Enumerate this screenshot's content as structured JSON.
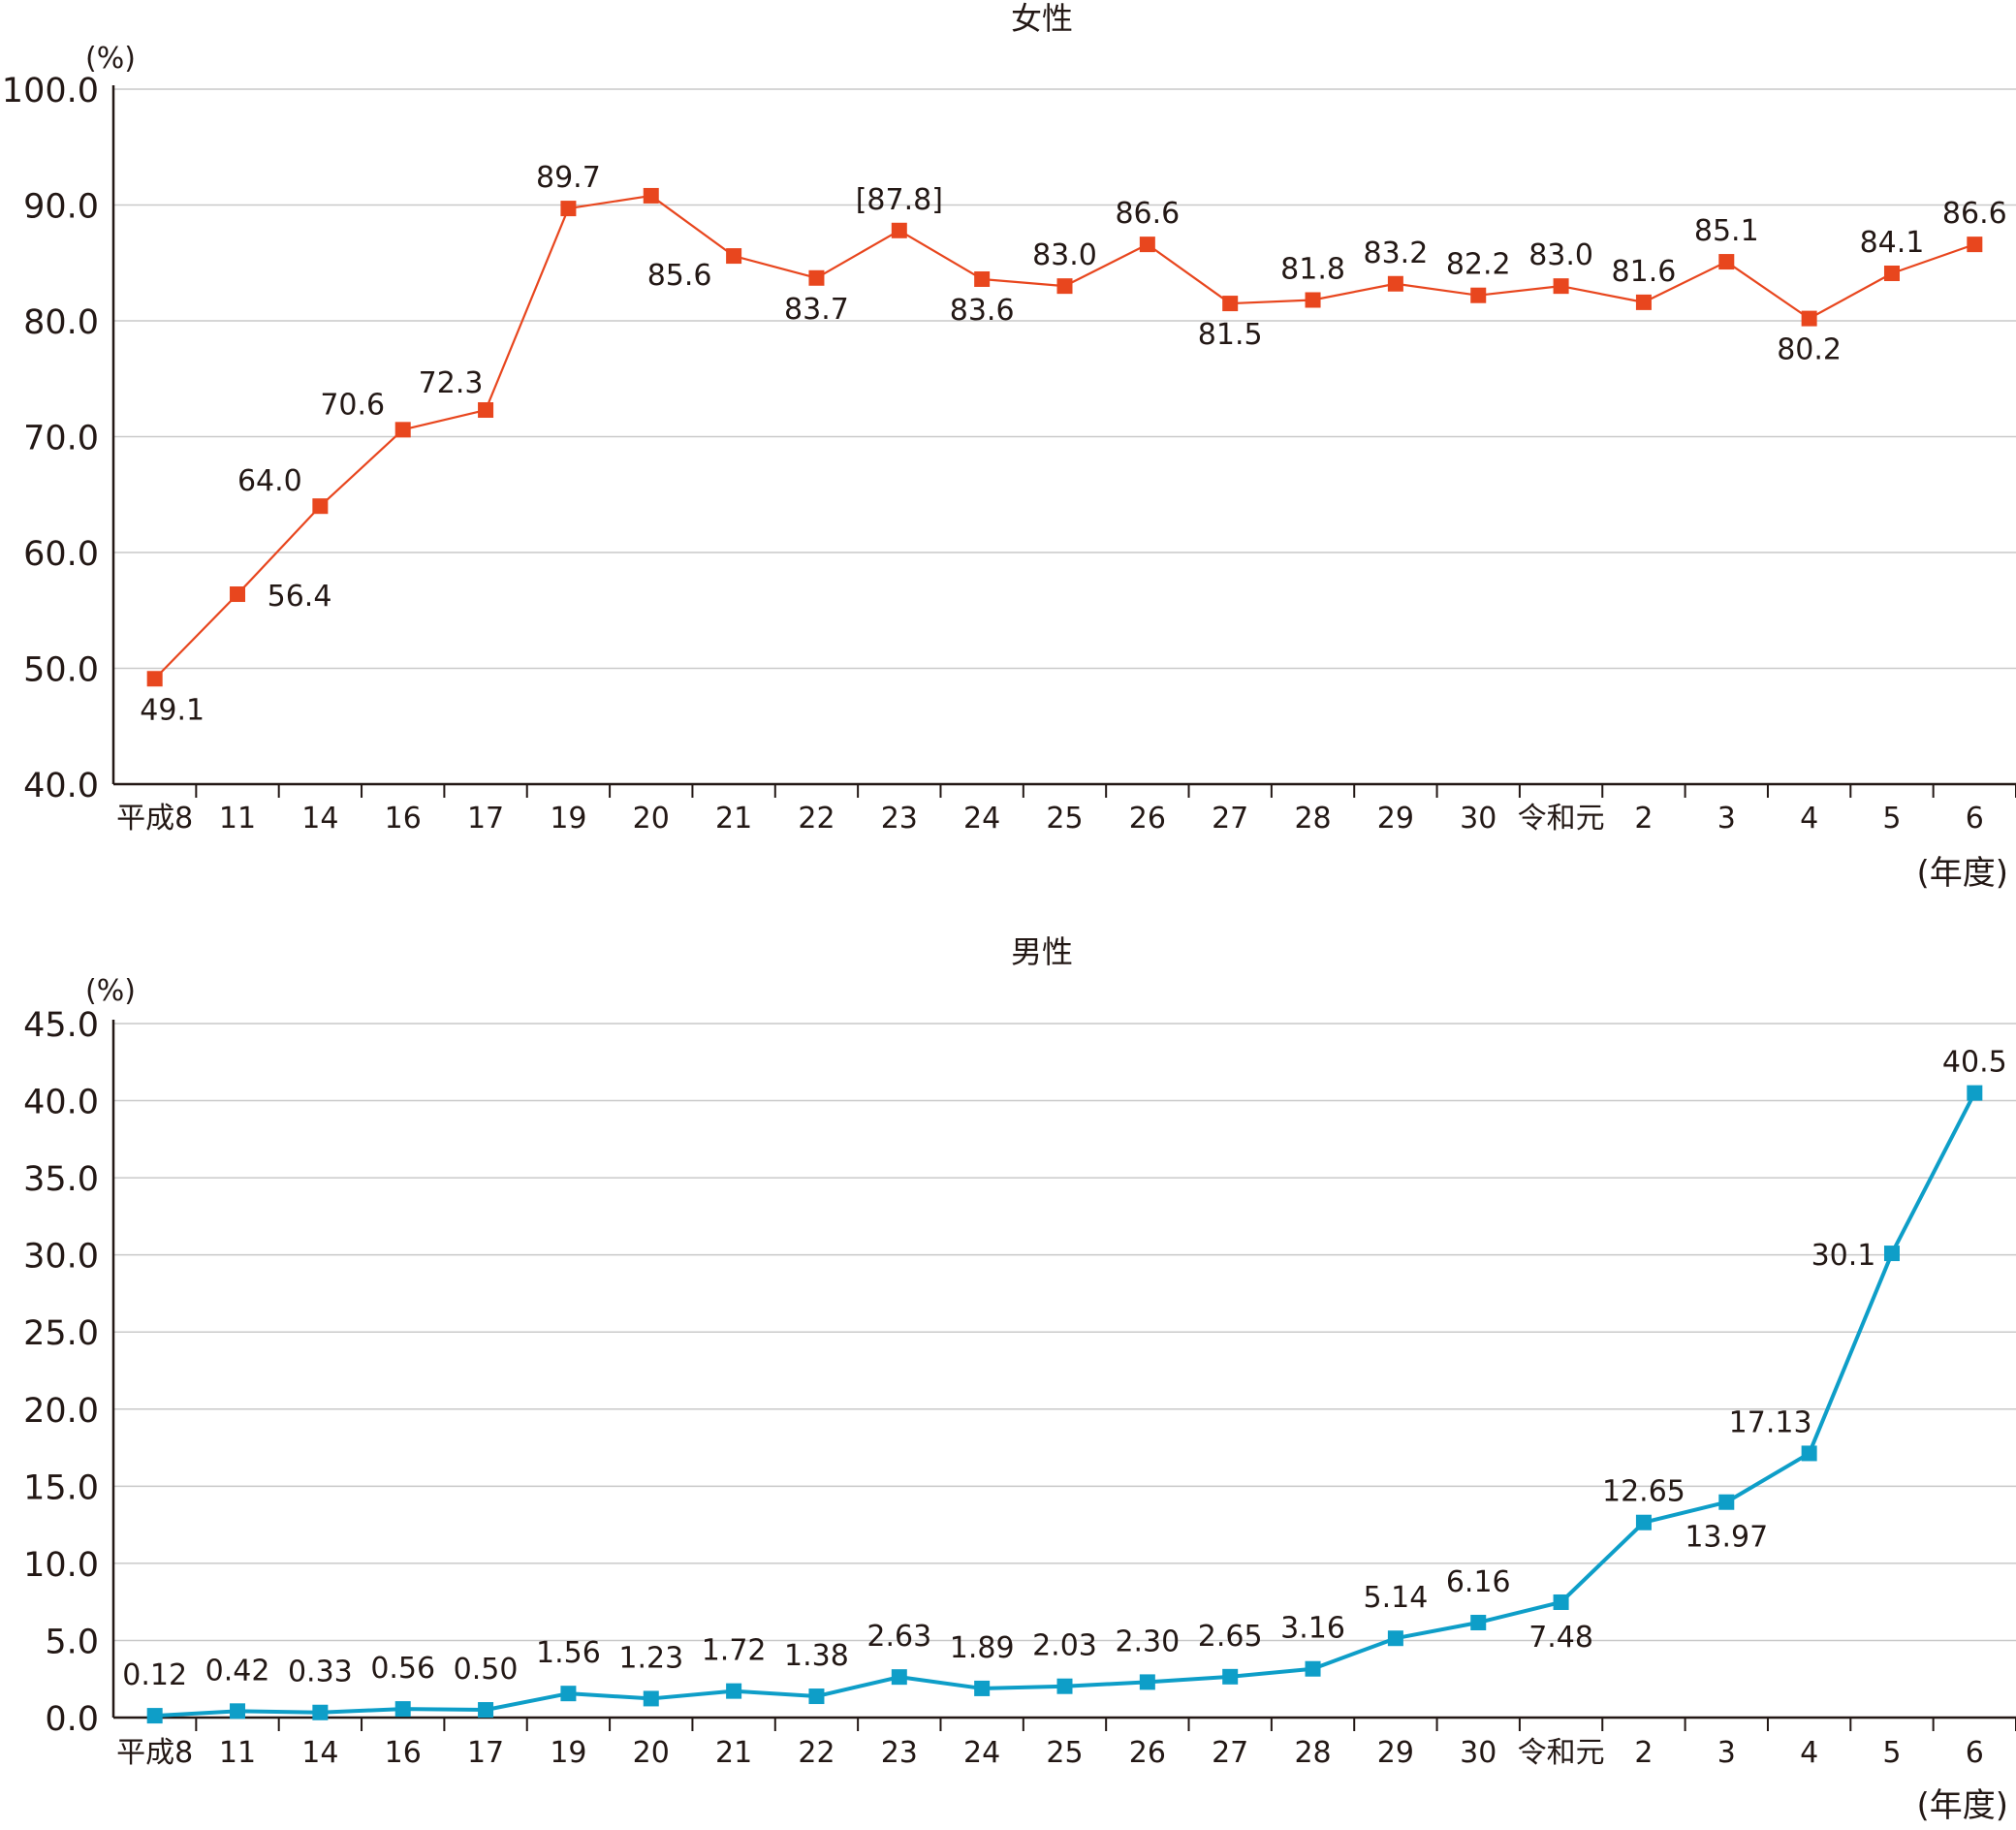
{
  "chart_data": [
    {
      "type": "line",
      "title": "女性",
      "ylabel": "(%)",
      "xlabel": "(年度)",
      "ylim": [
        40,
        100
      ],
      "yticks": [
        "40.0",
        "50.0",
        "60.0",
        "70.0",
        "80.0",
        "90.0",
        "100.0"
      ],
      "grid": true,
      "color": "#e8461e",
      "categories": [
        "平成8",
        "11",
        "14",
        "16",
        "17",
        "19",
        "20",
        "21",
        "22",
        "23",
        "24",
        "25",
        "26",
        "27",
        "28",
        "29",
        "30",
        "令和元",
        "2",
        "3",
        "4",
        "5",
        "6"
      ],
      "values": [
        49.1,
        56.4,
        64.0,
        70.6,
        72.3,
        89.7,
        90.8,
        85.6,
        83.7,
        87.8,
        83.6,
        83.0,
        86.6,
        81.5,
        81.8,
        83.2,
        82.2,
        83.0,
        81.6,
        85.1,
        80.2,
        84.1,
        86.6
      ],
      "labels": [
        "49.1",
        "56.4",
        "64.0",
        "70.6",
        "72.3",
        "89.7",
        "",
        "85.6",
        "83.7",
        "[87.8]",
        "83.6",
        "83.0",
        "86.6",
        "81.5",
        "81.8",
        "83.2",
        "82.2",
        "83.0",
        "81.6",
        "85.1",
        "80.2",
        "84.1",
        "86.6"
      ]
    },
    {
      "type": "line",
      "title": "男性",
      "ylabel": "(%)",
      "xlabel": "(年度)",
      "ylim": [
        0,
        45
      ],
      "yticks": [
        "0.0",
        "5.0",
        "10.0",
        "15.0",
        "20.0",
        "25.0",
        "30.0",
        "35.0",
        "40.0",
        "45.0"
      ],
      "grid": true,
      "color": "#0e9ec8",
      "categories": [
        "平成8",
        "11",
        "14",
        "16",
        "17",
        "19",
        "20",
        "21",
        "22",
        "23",
        "24",
        "25",
        "26",
        "27",
        "28",
        "29",
        "30",
        "令和元",
        "2",
        "3",
        "4",
        "5",
        "6"
      ],
      "values": [
        0.12,
        0.42,
        0.33,
        0.56,
        0.5,
        1.56,
        1.23,
        1.72,
        1.38,
        2.63,
        1.89,
        2.03,
        2.3,
        2.65,
        3.16,
        5.14,
        6.16,
        7.48,
        12.65,
        13.97,
        17.13,
        30.1,
        40.5
      ],
      "labels": [
        "0.12",
        "0.42",
        "0.33",
        "0.56",
        "0.50",
        "1.56",
        "1.23",
        "1.72",
        "1.38",
        "2.63",
        "1.89",
        "2.03",
        "2.30",
        "2.65",
        "3.16",
        "5.14",
        "6.16",
        "7.48",
        "12.65",
        "13.97",
        "17.13",
        "30.1",
        "40.5"
      ]
    }
  ]
}
